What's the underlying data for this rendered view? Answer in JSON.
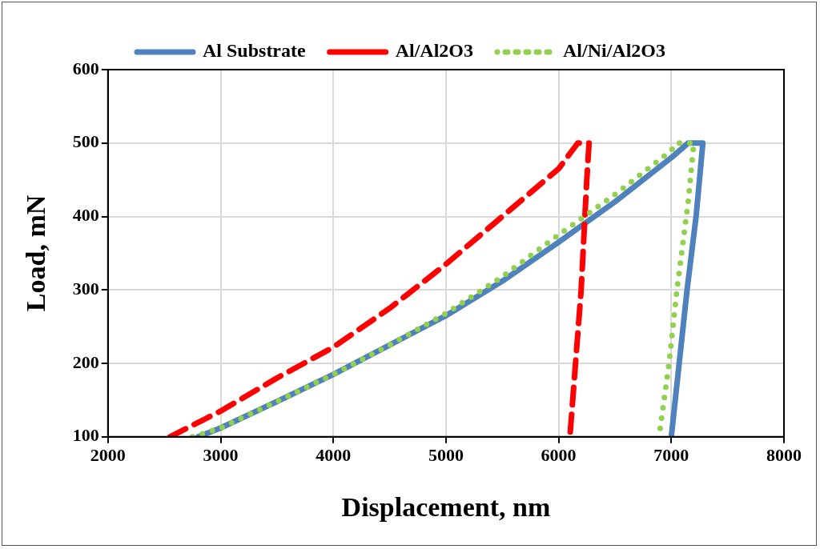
{
  "chart_data": {
    "type": "line",
    "xlabel": "Displacement, nm",
    "ylabel": "Load, mN",
    "xlim": [
      2000,
      8000
    ],
    "xticks": [
      2000,
      3000,
      4000,
      5000,
      6000,
      7000,
      8000
    ],
    "ylim": [
      100,
      600
    ],
    "yticks": [
      100,
      200,
      300,
      400,
      500,
      600
    ],
    "grid": true,
    "legend": "top",
    "marker": "none",
    "series": [
      {
        "name": "Al Substrate",
        "color": "#4f81bd",
        "line_style": "solid",
        "x": [
          2800,
          3000,
          3500,
          4000,
          4500,
          5000,
          5500,
          6000,
          6500,
          7000,
          7150,
          7280,
          7220,
          7140,
          7070,
          7000
        ],
        "values": [
          100,
          112,
          148,
          185,
          225,
          265,
          312,
          365,
          420,
          480,
          500,
          500,
          400,
          300,
          200,
          100
        ]
      },
      {
        "name": "Al/Al2O3",
        "color": "#ff0000",
        "line_style": "dashed",
        "x": [
          2550,
          3000,
          3500,
          4000,
          4500,
          5000,
          5500,
          6000,
          6170,
          6270,
          6250,
          6200,
          6150,
          6100
        ],
        "values": [
          100,
          135,
          180,
          222,
          275,
          335,
          400,
          465,
          500,
          500,
          450,
          300,
          200,
          100
        ]
      },
      {
        "name": "Al/Ni/Al2O3",
        "color": "#92d050",
        "line_style": "dotted",
        "x": [
          2750,
          3000,
          3500,
          4000,
          4500,
          5000,
          5500,
          6000,
          6500,
          7000,
          7050,
          7200,
          7150,
          7050,
          6980,
          6900
        ],
        "values": [
          100,
          112,
          148,
          185,
          225,
          268,
          318,
          375,
          430,
          490,
          500,
          500,
          420,
          300,
          200,
          110
        ]
      }
    ]
  }
}
